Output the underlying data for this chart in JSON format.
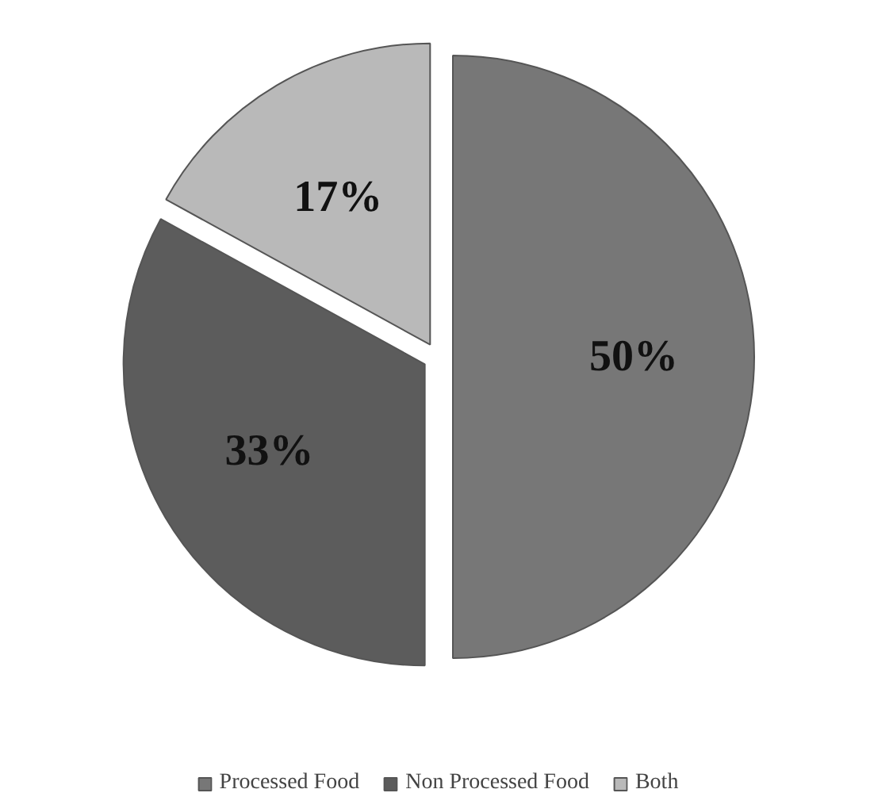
{
  "chart_data": {
    "type": "pie",
    "categories": [
      "Processed Food",
      "Non Processed Food",
      "Both"
    ],
    "values": [
      50,
      33,
      17
    ],
    "colors": [
      "#777777",
      "#5c5c5c",
      "#b9b9b9"
    ],
    "value_labels": [
      "50%",
      "33%",
      "17%"
    ],
    "legend": "bottom"
  }
}
